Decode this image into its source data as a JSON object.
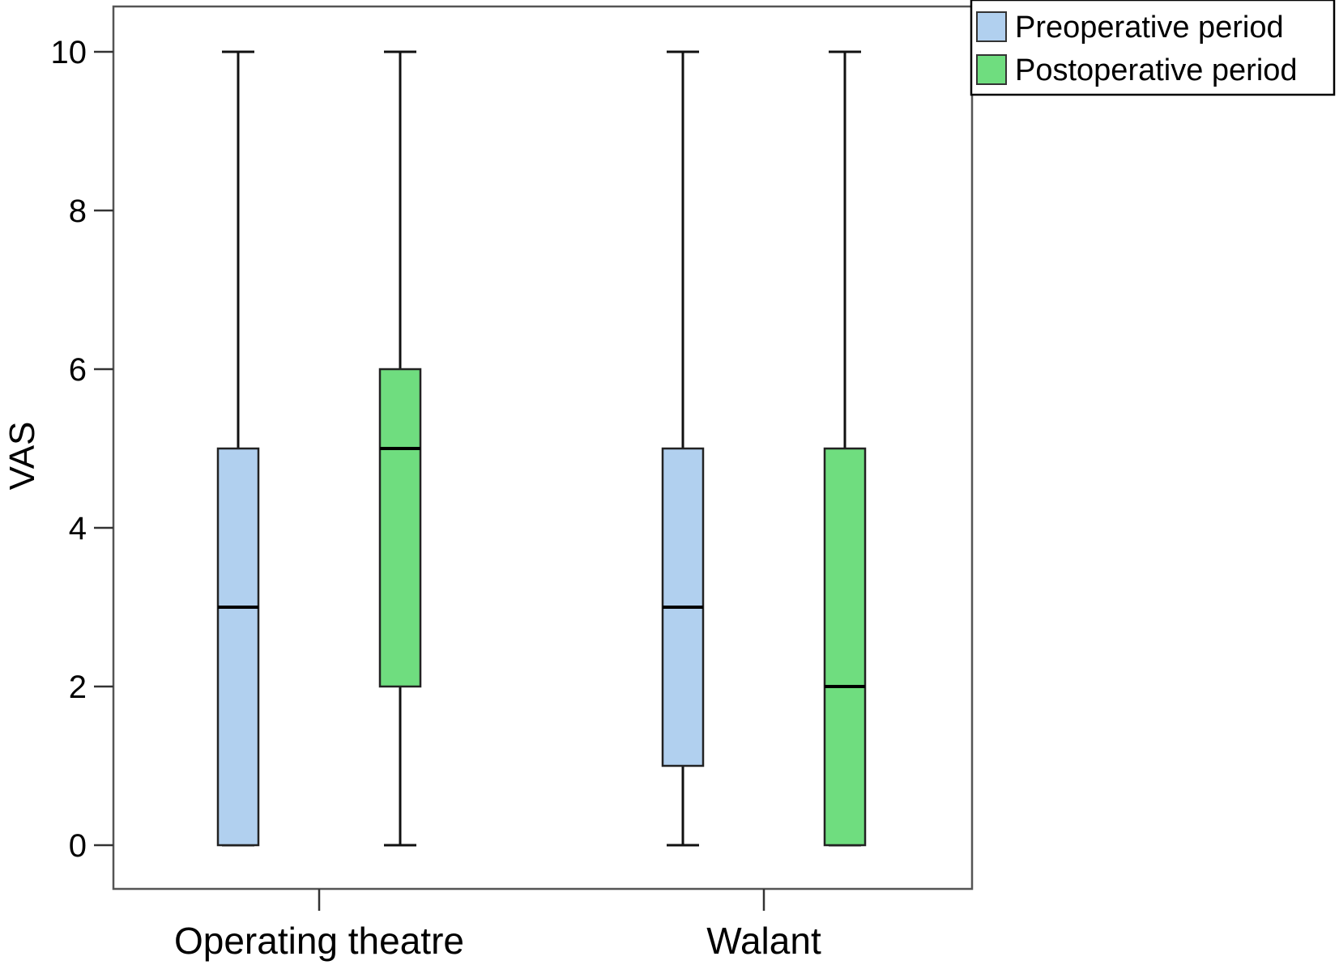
{
  "chart_data": {
    "type": "boxplot",
    "title": "",
    "xlabel": "",
    "ylabel": "VAS",
    "ylim": [
      -0.5,
      10.6
    ],
    "yticks": [
      0,
      2,
      4,
      6,
      8,
      10
    ],
    "grid": false,
    "legend_position": "top-right",
    "categories": [
      "Operating theatre",
      "Walant"
    ],
    "series": [
      {
        "name": "Preoperative period",
        "color": "#b1d0ef",
        "boxes": [
          {
            "min": 0,
            "q1": 0,
            "median": 3,
            "q3": 5,
            "max": 10
          },
          {
            "min": 0,
            "q1": 1,
            "median": 3,
            "q3": 5,
            "max": 10
          }
        ]
      },
      {
        "name": "Postoperative period",
        "color": "#6fdd7f",
        "boxes": [
          {
            "min": 0,
            "q1": 2,
            "median": 5,
            "q3": 6,
            "max": 10
          },
          {
            "min": 0,
            "q1": 0,
            "median": 2,
            "q3": 5,
            "max": 10
          }
        ]
      }
    ]
  }
}
